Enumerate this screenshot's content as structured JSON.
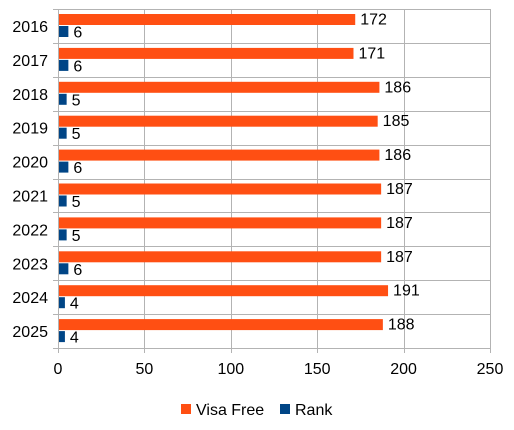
{
  "chart_data": {
    "type": "bar",
    "orientation": "horizontal",
    "categories": [
      "2016",
      "2017",
      "2018",
      "2019",
      "2020",
      "2021",
      "2022",
      "2023",
      "2024",
      "2025"
    ],
    "series": [
      {
        "name": "Visa Free",
        "color": "#ff4f13",
        "values": [
          172,
          171,
          186,
          185,
          186,
          187,
          187,
          187,
          191,
          188
        ]
      },
      {
        "name": "Rank",
        "color": "#004586",
        "values": [
          6,
          6,
          5,
          5,
          6,
          5,
          5,
          6,
          4,
          4
        ]
      }
    ],
    "x_ticks": [
      "0",
      "50",
      "100",
      "150",
      "200",
      "250"
    ],
    "xlim": [
      0,
      250
    ],
    "grid": true,
    "legend_position": "bottom"
  }
}
